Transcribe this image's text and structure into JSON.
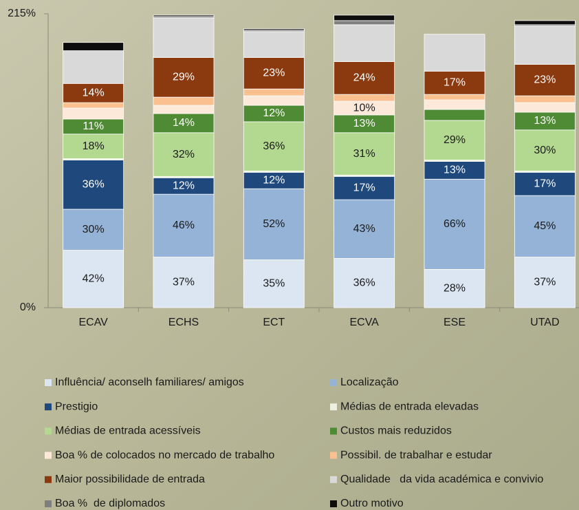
{
  "chart_data": {
    "type": "stacked_bar",
    "categories": [
      "ECAV",
      "ECHS",
      "ECT",
      "ECVA",
      "ESE",
      "UTAD"
    ],
    "ylim": [
      0,
      215
    ],
    "yticks": [
      {
        "value": 0,
        "label": "0%"
      },
      {
        "value": 215,
        "label": "215%"
      }
    ],
    "series": [
      {
        "name": "Influência/ aconselh familiares/ amigos",
        "color": "#dce6f2",
        "values": [
          42,
          37,
          35,
          36,
          28,
          37
        ],
        "value_labels": [
          "42%",
          "37%",
          "35%",
          "36%",
          "28%",
          "37%"
        ]
      },
      {
        "name": "Localização",
        "color": "#95b3d7",
        "values": [
          30,
          46,
          52,
          43,
          66,
          45
        ],
        "value_labels": [
          "30%",
          "46%",
          "52%",
          "43%",
          "66%",
          "45%"
        ]
      },
      {
        "name": "Prestigio",
        "color": "#1f497d",
        "values": [
          36,
          12,
          12,
          17,
          13,
          17
        ],
        "value_labels": [
          "36%",
          "12%",
          "12%",
          "17%",
          "13%",
          "17%"
        ]
      },
      {
        "name": "Médias de entrada elevadas",
        "color": "#ebf1de",
        "values": [
          1,
          1,
          1,
          1,
          1,
          1
        ]
      },
      {
        "name": "Médias de entrada acessíveis",
        "color": "#b3d88f",
        "values": [
          18,
          32,
          36,
          31,
          29,
          30
        ],
        "value_labels": [
          "18%",
          "32%",
          "36%",
          "31%",
          "29%",
          "30%"
        ]
      },
      {
        "name": "Custos mais reduzidos",
        "color": "#4f8a34",
        "values": [
          11,
          14,
          12,
          13,
          8,
          13
        ],
        "value_labels": [
          "11%",
          "14%",
          "12%",
          "13%",
          null,
          "13%"
        ]
      },
      {
        "name": "Boa % de colocados no mercado de trabalho",
        "color": "#fde9d9",
        "values": [
          8,
          6,
          7,
          10,
          7,
          7
        ],
        "value_labels": [
          null,
          null,
          null,
          "10%",
          null,
          null
        ]
      },
      {
        "name": "Possibil. de trabalhar e estudar",
        "color": "#fac090",
        "values": [
          4,
          6,
          5,
          5,
          4,
          5
        ]
      },
      {
        "name": "Maior possibilidade de entrada",
        "color": "#8b3a0f",
        "values": [
          14,
          29,
          23,
          24,
          17,
          23
        ],
        "value_labels": [
          "14%",
          "29%",
          "23%",
          "24%",
          "17%",
          "23%"
        ]
      },
      {
        "name": "Qualidade   da vida académica e convivio",
        "color": "#d9d9d9",
        "values": [
          24,
          29,
          19,
          27,
          27,
          28
        ]
      },
      {
        "name": "Boa %  de diplomados",
        "color": "#7f7f7f",
        "values": [
          0,
          1,
          1,
          3,
          0,
          1
        ]
      },
      {
        "name": "Outro motivo",
        "color": "#0d0d0d",
        "values": [
          6,
          1,
          1,
          4,
          0,
          3
        ]
      }
    ]
  }
}
